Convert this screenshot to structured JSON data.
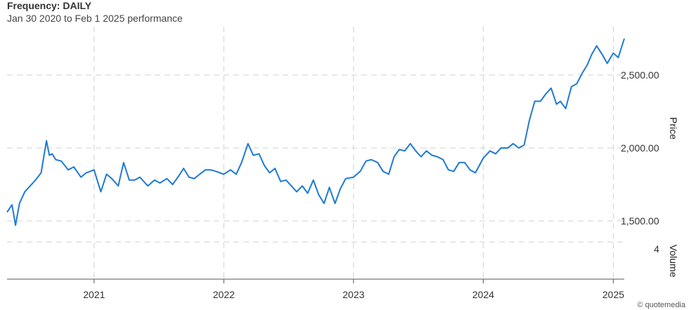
{
  "header": {
    "title": "Frequency: DAILY",
    "subtitle": "Jan 30 2020 to Feb 1 2025 performance"
  },
  "credit": "© quotemedia",
  "colors": {
    "line": "#1f7ad1",
    "grid": "#d0d0d0"
  },
  "chart_data": {
    "type": "line",
    "title": "Frequency: DAILY",
    "subtitle": "Jan 30 2020 to Feb 1 2025 performance",
    "ylabel": "Price",
    "y2label": "Volume",
    "xlim": [
      "2020-05-01",
      "2025-02-01"
    ],
    "ylim": [
      1380,
      2820
    ],
    "grid": true,
    "legend": "none",
    "x_ticks": [
      {
        "date": "2021-01-01",
        "label": "2021"
      },
      {
        "date": "2022-01-01",
        "label": "2022"
      },
      {
        "date": "2023-01-01",
        "label": "2023"
      },
      {
        "date": "2024-01-01",
        "label": "2024"
      },
      {
        "date": "2025-01-01",
        "label": "2025"
      }
    ],
    "y_ticks": [
      {
        "value": 1500,
        "label": "1,500.00"
      },
      {
        "value": 2000,
        "label": "2,000.00"
      },
      {
        "value": 2500,
        "label": "2,500.00"
      }
    ],
    "volume_tick": {
      "value": 4,
      "label": "4"
    },
    "series": [
      {
        "x": [
          "2020-05-01",
          "2020-05-15",
          "2020-05-25",
          "2020-06-05",
          "2020-06-20",
          "2020-07-05",
          "2020-07-20",
          "2020-08-05",
          "2020-08-20",
          "2020-08-28",
          "2020-09-05",
          "2020-09-15",
          "2020-10-01",
          "2020-10-20",
          "2020-11-05",
          "2020-11-25",
          "2020-12-10",
          "2021-01-01",
          "2021-01-20",
          "2021-02-05",
          "2021-02-20",
          "2021-03-10",
          "2021-03-25",
          "2021-04-10",
          "2021-04-25",
          "2021-05-10",
          "2021-06-01",
          "2021-06-20",
          "2021-07-05",
          "2021-07-25",
          "2021-08-10",
          "2021-08-25",
          "2021-09-10",
          "2021-09-25",
          "2021-10-10",
          "2021-10-25",
          "2021-11-10",
          "2021-11-25",
          "2021-12-10",
          "2022-01-01",
          "2022-01-20",
          "2022-02-05",
          "2022-02-20",
          "2022-03-10",
          "2022-03-25",
          "2022-04-10",
          "2022-04-25",
          "2022-05-10",
          "2022-05-25",
          "2022-06-10",
          "2022-06-25",
          "2022-07-10",
          "2022-07-25",
          "2022-08-10",
          "2022-08-25",
          "2022-09-10",
          "2022-09-25",
          "2022-10-10",
          "2022-10-25",
          "2022-11-10",
          "2022-11-25",
          "2022-12-10",
          "2023-01-01",
          "2023-01-20",
          "2023-02-05",
          "2023-02-20",
          "2023-03-10",
          "2023-03-25",
          "2023-04-10",
          "2023-04-25",
          "2023-05-10",
          "2023-05-25",
          "2023-06-10",
          "2023-06-25",
          "2023-07-10",
          "2023-07-25",
          "2023-08-10",
          "2023-08-25",
          "2023-09-10",
          "2023-09-25",
          "2023-10-10",
          "2023-10-25",
          "2023-11-10",
          "2023-11-25",
          "2023-12-10",
          "2024-01-01",
          "2024-01-20",
          "2024-02-05",
          "2024-02-20",
          "2024-03-10",
          "2024-03-25",
          "2024-04-10",
          "2024-04-25",
          "2024-05-10",
          "2024-05-25",
          "2024-06-10",
          "2024-06-25",
          "2024-07-10",
          "2024-07-25",
          "2024-08-05",
          "2024-08-20",
          "2024-09-05",
          "2024-09-20",
          "2024-10-05",
          "2024-10-20",
          "2024-11-01",
          "2024-11-15",
          "2024-12-01",
          "2024-12-15",
          "2025-01-01",
          "2025-01-15",
          "2025-02-01"
        ],
        "y": [
          1560,
          1610,
          1470,
          1620,
          1700,
          1740,
          1780,
          1830,
          2050,
          1950,
          1960,
          1920,
          1910,
          1850,
          1870,
          1800,
          1830,
          1850,
          1700,
          1820,
          1790,
          1740,
          1900,
          1780,
          1780,
          1800,
          1740,
          1780,
          1760,
          1790,
          1750,
          1800,
          1860,
          1800,
          1790,
          1820,
          1850,
          1850,
          1840,
          1820,
          1850,
          1820,
          1900,
          2030,
          1950,
          1960,
          1880,
          1830,
          1860,
          1770,
          1780,
          1740,
          1700,
          1740,
          1690,
          1780,
          1680,
          1620,
          1730,
          1620,
          1720,
          1790,
          1800,
          1840,
          1910,
          1920,
          1900,
          1840,
          1820,
          1940,
          1990,
          1980,
          2030,
          1980,
          1940,
          1980,
          1950,
          1940,
          1920,
          1850,
          1840,
          1900,
          1900,
          1850,
          1830,
          1930,
          1980,
          1960,
          2000,
          2000,
          2030,
          2000,
          2020,
          2190,
          2320,
          2320,
          2370,
          2410,
          2300,
          2320,
          2270,
          2420,
          2440,
          2510,
          2570,
          2640,
          2700,
          2640,
          2580,
          2650,
          2620,
          2750
        ]
      }
    ]
  }
}
